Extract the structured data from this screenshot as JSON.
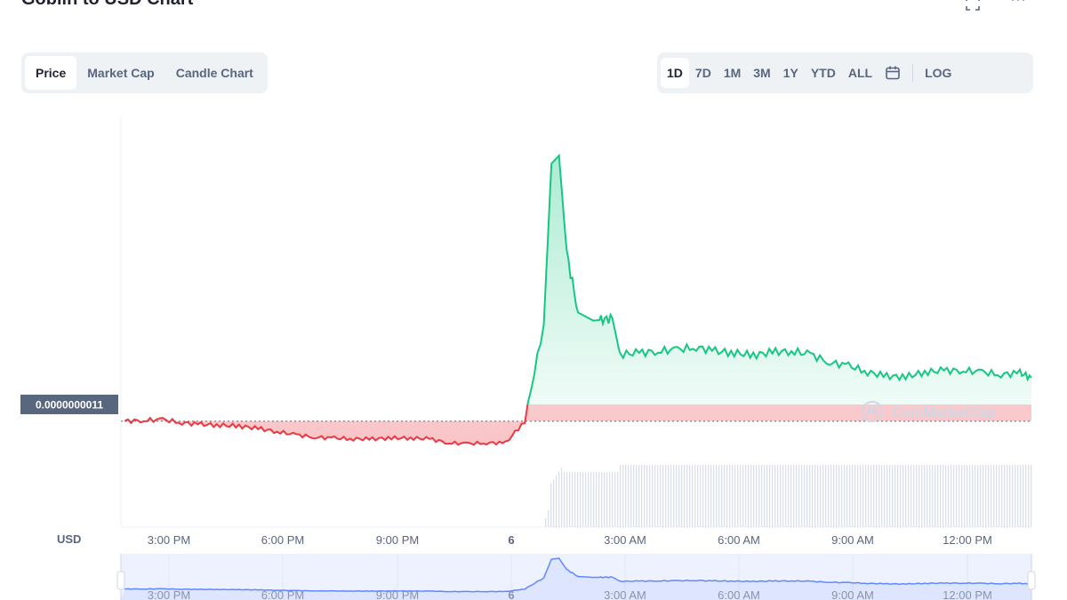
{
  "page": {
    "title": "Goblin to USD Chart"
  },
  "toolbar": {
    "tabs": [
      {
        "label": "Price",
        "active": true
      },
      {
        "label": "Market Cap",
        "active": false
      },
      {
        "label": "Candle Chart",
        "active": false
      }
    ],
    "ranges": [
      {
        "label": "1D",
        "active": true
      },
      {
        "label": "7D",
        "active": false
      },
      {
        "label": "1M",
        "active": false
      },
      {
        "label": "3M",
        "active": false
      },
      {
        "label": "1Y",
        "active": false
      },
      {
        "label": "YTD",
        "active": false
      },
      {
        "label": "ALL",
        "active": false
      }
    ],
    "log_label": "LOG",
    "icons": [
      "fullscreen-icon",
      "more-options-icon",
      "calendar-icon"
    ]
  },
  "colors": {
    "up": "#16c784",
    "down": "#ea3943",
    "navigator": "#6188ff",
    "reference": "#58667e"
  },
  "chart_data": {
    "type": "line",
    "reference_label": "0.0000000011",
    "currency_label": "USD",
    "watermark": "CoinMarketCap",
    "x_ticks": [
      "3:00 PM",
      "6:00 PM",
      "9:00 PM",
      "6",
      "3:00 AM",
      "6:00 AM",
      "9:00 AM",
      "12:00 PM"
    ],
    "x_range_hours": [
      -2.1,
      21.8
    ],
    "reference_value": 1.1e-09,
    "y_range": [
      5.9e-10,
      4.6e-09
    ],
    "series": [
      {
        "x": [
          -2.0,
          -1.5,
          -1.0,
          -0.5,
          0.0,
          0.5,
          1.0,
          1.5,
          2.0,
          2.5,
          3.0,
          3.5,
          4.0,
          4.5,
          5.0,
          5.5,
          6.0,
          6.5,
          7.0,
          7.5,
          8.0,
          8.5,
          9.0,
          9.2,
          9.4,
          9.6,
          9.9,
          10.1,
          10.3,
          10.5,
          10.8,
          11.0,
          11.5,
          12.0,
          12.5,
          13.0,
          13.5,
          14.0,
          14.5,
          15.0,
          15.5,
          16.0,
          16.5,
          17.0,
          17.5,
          18.0,
          18.5,
          19.0,
          19.5,
          20.0,
          20.5,
          21.0,
          21.5,
          21.8
        ],
        "y": [
          1.1e-09,
          1.11e-09,
          1.12e-09,
          1.08e-09,
          1.06e-09,
          1.05e-09,
          1.04e-09,
          1.01e-09,
          9.7e-10,
          9.3e-10,
          9e-10,
          8.9e-10,
          8.8e-10,
          8.8e-10,
          8.9e-10,
          8.9e-10,
          8.8e-10,
          8.3e-10,
          8.2e-10,
          8.3e-10,
          8.3e-10,
          1.1e-09,
          2.3e-09,
          4.3e-09,
          4.4e-09,
          3.2e-09,
          2.45e-09,
          2.4e-09,
          2.35e-09,
          2.36e-09,
          2.38e-09,
          1.93e-09,
          1.95e-09,
          1.97e-09,
          1.99e-09,
          2.02e-09,
          1.97e-09,
          1.95e-09,
          1.92e-09,
          1.96e-09,
          1.97e-09,
          1.93e-09,
          1.83e-09,
          1.79e-09,
          1.71e-09,
          1.66e-09,
          1.65e-09,
          1.71e-09,
          1.73e-09,
          1.73e-09,
          1.71e-09,
          1.68e-09,
          1.7e-09,
          1.64e-09
        ]
      }
    ],
    "volume_bars": "present (grey bars, unlabeled)"
  }
}
